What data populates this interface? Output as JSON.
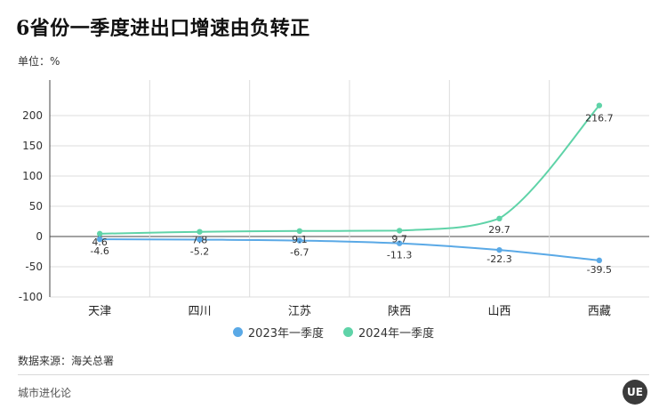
{
  "title": "6省份一季度进出口增速由负转正",
  "unit_label": "单位：%",
  "source": "数据来源：海关总署",
  "brand": "城市进化论",
  "logo_text": "UE",
  "colors": {
    "series_2023": "#5aa9e6",
    "series_2024": "#5fd3a8",
    "grid": "#dcdcdc",
    "axis": "#333333"
  },
  "chart_data": {
    "type": "line",
    "categories": [
      "天津",
      "四川",
      "江苏",
      "陕西",
      "山西",
      "西藏"
    ],
    "series": [
      {
        "name": "2023年一季度",
        "values": [
          -4.6,
          -5.2,
          -6.7,
          -11.3,
          -22.3,
          -39.5
        ]
      },
      {
        "name": "2024年一季度",
        "values": [
          4.6,
          7.8,
          9.1,
          9.7,
          29.7,
          216.7
        ]
      }
    ],
    "ylim": [
      -100,
      250
    ],
    "yticks": [
      -100,
      -50,
      0,
      50,
      100,
      150,
      200
    ],
    "grid": true,
    "legend": "bottom"
  }
}
